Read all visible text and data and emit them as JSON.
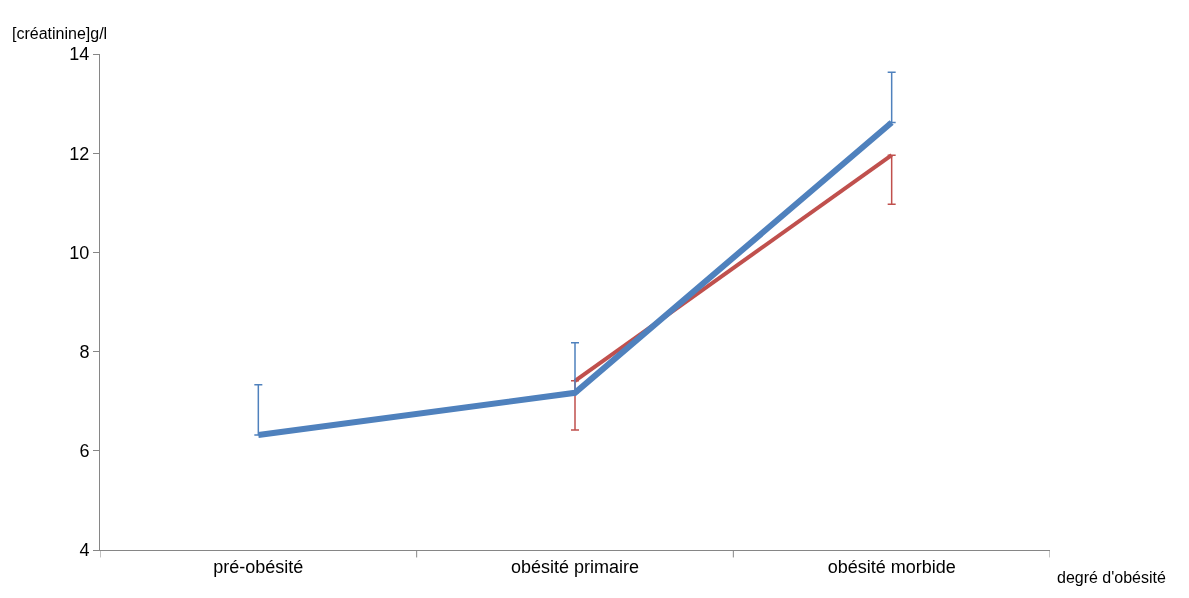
{
  "chart_data": {
    "type": "line",
    "ylabel": "[créatinine]g/l",
    "xlabel": "degré d'obésité",
    "categories": [
      "pré-obésité",
      "obésité primaire",
      "obésité morbide"
    ],
    "series": [
      {
        "color": "#c0504d",
        "values": [
          null,
          7.41,
          11.96
        ],
        "errors": [
          null,
          [
            6.42,
            7.41
          ],
          [
            10.97,
            11.96
          ]
        ]
      },
      {
        "color": "#4f81bd",
        "values": [
          6.32,
          7.17,
          12.62
        ],
        "errors": [
          [
            6.32,
            7.33
          ],
          [
            7.17,
            8.18
          ],
          [
            12.62,
            13.63
          ]
        ]
      }
    ],
    "ylim": [
      4,
      14
    ],
    "yticks": [
      4,
      6,
      8,
      10,
      12,
      14
    ],
    "marker": "none",
    "line_style": "solid"
  }
}
